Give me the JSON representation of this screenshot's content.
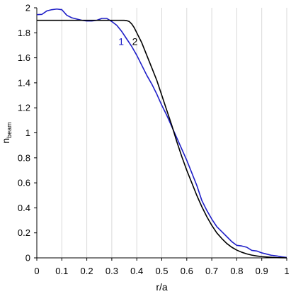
{
  "chart_data": {
    "type": "line",
    "xlabel": "r/a",
    "ylabel_main": "n",
    "ylabel_sub": "beam",
    "xlim": [
      0,
      1
    ],
    "ylim": [
      0,
      2
    ],
    "x_ticks": [
      0,
      0.1,
      0.2,
      0.3,
      0.4,
      0.5,
      0.6,
      0.7,
      0.8,
      0.9,
      1
    ],
    "x_tick_labels": [
      "0",
      "0.1",
      "0.2",
      "0.3",
      "0.4",
      "0.5",
      "0.6",
      "0.7",
      "0.8",
      "0.9",
      "1"
    ],
    "y_ticks": [
      0,
      0.2,
      0.4,
      0.6,
      0.8,
      1,
      1.2,
      1.4,
      1.6,
      1.8,
      2
    ],
    "y_tick_labels": [
      "0",
      "0.2",
      "0.4",
      "0.6",
      "0.8",
      "1",
      "1.2",
      "1.4",
      "1.6",
      "1.8",
      "2"
    ],
    "grid": "vertical",
    "series": [
      {
        "name": "1",
        "color": "#1f1fc8",
        "label_at": [
          0.315,
          1.73
        ],
        "x": [
          0,
          0.02,
          0.04,
          0.06,
          0.08,
          0.1,
          0.12,
          0.14,
          0.16,
          0.18,
          0.2,
          0.22,
          0.24,
          0.26,
          0.28,
          0.3,
          0.32,
          0.34,
          0.36,
          0.38,
          0.4,
          0.42,
          0.44,
          0.46,
          0.48,
          0.5,
          0.52,
          0.54,
          0.56,
          0.58,
          0.6,
          0.62,
          0.64,
          0.66,
          0.68,
          0.7,
          0.72,
          0.74,
          0.76,
          0.78,
          0.8,
          0.82,
          0.84,
          0.86,
          0.88,
          0.9,
          0.92,
          0.94,
          0.96,
          0.98,
          1.0
        ],
        "y": [
          1.945,
          1.947,
          1.975,
          1.985,
          1.99,
          1.985,
          1.94,
          1.92,
          1.91,
          1.9,
          1.895,
          1.895,
          1.9,
          1.915,
          1.915,
          1.89,
          1.86,
          1.81,
          1.75,
          1.69,
          1.62,
          1.54,
          1.46,
          1.39,
          1.31,
          1.22,
          1.14,
          1.05,
          0.96,
          0.87,
          0.78,
          0.68,
          0.58,
          0.46,
          0.38,
          0.31,
          0.25,
          0.21,
          0.17,
          0.13,
          0.1,
          0.095,
          0.085,
          0.06,
          0.055,
          0.04,
          0.03,
          0.02,
          0.015,
          0.008,
          0.003
        ]
      },
      {
        "name": "2",
        "color": "#000000",
        "label_at": [
          0.37,
          1.73
        ],
        "x": [
          0,
          0.05,
          0.1,
          0.15,
          0.2,
          0.25,
          0.3,
          0.33,
          0.35,
          0.36,
          0.37,
          0.38,
          0.39,
          0.4,
          0.42,
          0.44,
          0.46,
          0.48,
          0.5,
          0.52,
          0.54,
          0.56,
          0.58,
          0.6,
          0.62,
          0.64,
          0.66,
          0.68,
          0.7,
          0.72,
          0.74,
          0.76,
          0.78,
          0.8,
          0.82,
          0.84,
          0.86,
          0.88,
          0.9,
          0.92,
          0.94,
          0.96,
          0.98,
          1.0
        ],
        "y": [
          1.9,
          1.9,
          1.9,
          1.9,
          1.9,
          1.9,
          1.9,
          1.9,
          1.9,
          1.897,
          1.89,
          1.87,
          1.84,
          1.8,
          1.72,
          1.62,
          1.52,
          1.42,
          1.3,
          1.18,
          1.06,
          0.93,
          0.81,
          0.7,
          0.6,
          0.5,
          0.41,
          0.33,
          0.26,
          0.2,
          0.155,
          0.115,
          0.085,
          0.062,
          0.045,
          0.032,
          0.022,
          0.015,
          0.01,
          0.007,
          0.004,
          0.002,
          0.001,
          0.0
        ]
      }
    ]
  }
}
